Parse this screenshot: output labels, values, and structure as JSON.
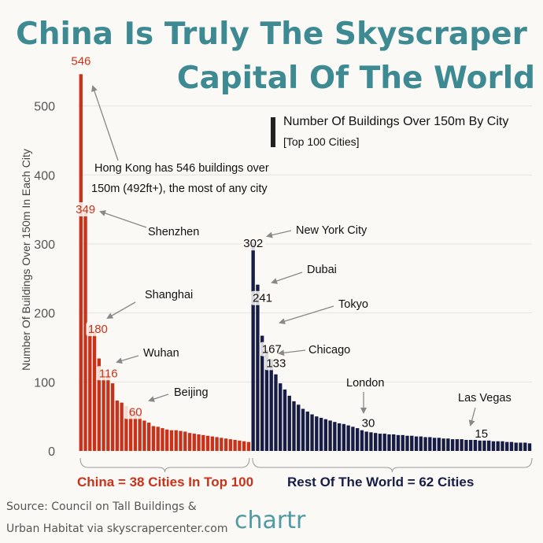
{
  "title": {
    "line1": "China Is Truly The Skyscraper",
    "line2": "Capital Of The World"
  },
  "legend": {
    "title": "Number Of Buildings Over 150m By City",
    "subtitle": "[Top 100 Cities]"
  },
  "groups": {
    "china": "China = 38 Cities In Top 100",
    "rest": "Rest Of The World = 62 Cities"
  },
  "source": {
    "line1": "Source: Council on Tall Buildings &",
    "line2": "Urban Habitat via skyscrapercenter.com"
  },
  "brand": "chartr",
  "colors": {
    "china": "#c8321a",
    "rest": "#161c45",
    "title": "#3e8a92"
  },
  "chart_data": {
    "type": "bar",
    "ylabel": "Number Of Buildings Over 150m In Each City",
    "ylim": [
      0,
      560
    ],
    "yticks": [
      0,
      100,
      200,
      300,
      400,
      500
    ],
    "grid": true,
    "series": [
      {
        "name": "China",
        "values": [
          546,
          349,
          180,
          174,
          134,
          116,
          113,
          98,
          73,
          70,
          65,
          60,
          57,
          52,
          44,
          41,
          36,
          35,
          33,
          31,
          30,
          30,
          29,
          28,
          26,
          25,
          24,
          23,
          22,
          21,
          20,
          19,
          18,
          17,
          16,
          15,
          14,
          13
        ]
      },
      {
        "name": "Rest Of The World",
        "values": [
          302,
          241,
          167,
          146,
          133,
          111,
          98,
          89,
          80,
          72,
          67,
          61,
          57,
          53,
          50,
          48,
          46,
          44,
          42,
          40,
          39,
          37,
          35,
          33,
          30,
          28,
          27,
          26,
          25,
          25,
          24,
          24,
          23,
          23,
          22,
          22,
          21,
          21,
          20,
          20,
          19,
          19,
          18,
          18,
          17,
          17,
          17,
          16,
          16,
          16,
          15,
          15,
          15,
          14,
          14,
          14,
          13,
          13,
          12,
          12,
          12,
          11
        ]
      }
    ],
    "annotations": [
      {
        "series": 0,
        "index": 0,
        "value_label": "546",
        "text": "Hong Kong has 546 buildings over 150m (492ft+), the most of any city"
      },
      {
        "series": 0,
        "index": 1,
        "value_label": "349",
        "text": "Shenzhen"
      },
      {
        "series": 0,
        "index": 2,
        "value_label": "180",
        "text": "Shanghai"
      },
      {
        "series": 0,
        "index": 5,
        "value_label": "116",
        "text": "Wuhan"
      },
      {
        "series": 0,
        "index": 11,
        "value_label": "60",
        "text": "Beijing"
      },
      {
        "series": 1,
        "index": 0,
        "value_label": "302",
        "text": "New York City"
      },
      {
        "series": 1,
        "index": 1,
        "value_label": "241",
        "text": "Dubai"
      },
      {
        "series": 1,
        "index": 2,
        "value_label": "167",
        "text": "Tokyo"
      },
      {
        "series": 1,
        "index": 4,
        "value_label": "133",
        "text": "Chicago"
      },
      {
        "series": 1,
        "index": 24,
        "value_label": "30",
        "text": "London"
      },
      {
        "series": 1,
        "index": 50,
        "value_label": "15",
        "text": "Las Vegas"
      }
    ]
  }
}
